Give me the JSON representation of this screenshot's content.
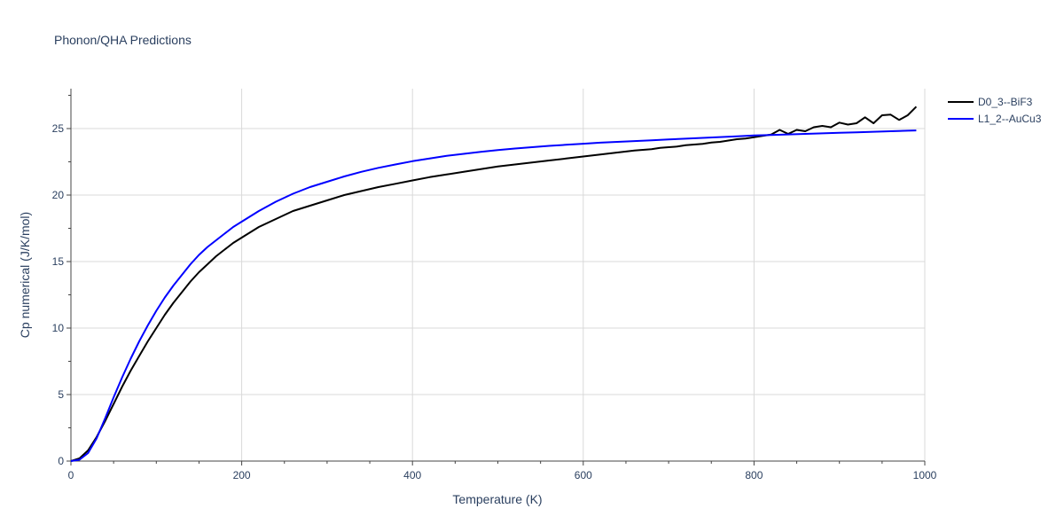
{
  "chart_data": {
    "type": "line",
    "title": "Phonon/QHA Predictions",
    "xlabel": "Temperature (K)",
    "ylabel": "Cp numerical (J/K/mol)",
    "xlim": [
      0,
      1000
    ],
    "ylim": [
      0,
      28
    ],
    "x_ticks": [
      0,
      200,
      400,
      600,
      800,
      1000
    ],
    "y_ticks": [
      0,
      5,
      10,
      15,
      20,
      25
    ],
    "grid": true,
    "legend_position": "top-right",
    "series": [
      {
        "name": "D0_3--BiF3",
        "color": "#000000",
        "x": [
          0,
          10,
          20,
          30,
          40,
          50,
          60,
          70,
          80,
          90,
          100,
          110,
          120,
          130,
          140,
          150,
          160,
          170,
          180,
          190,
          200,
          220,
          240,
          260,
          280,
          300,
          320,
          340,
          360,
          380,
          400,
          420,
          440,
          460,
          480,
          500,
          520,
          540,
          560,
          580,
          600,
          620,
          640,
          660,
          670,
          680,
          690,
          700,
          710,
          720,
          730,
          740,
          750,
          760,
          770,
          780,
          790,
          800,
          810,
          820,
          830,
          840,
          850,
          860,
          870,
          880,
          890,
          900,
          910,
          920,
          930,
          940,
          950,
          960,
          970,
          980,
          990
        ],
        "y": [
          0,
          0.2,
          0.8,
          1.8,
          3.0,
          4.3,
          5.6,
          6.8,
          7.9,
          9.0,
          10.0,
          11.0,
          11.9,
          12.7,
          13.5,
          14.2,
          14.8,
          15.4,
          15.9,
          16.4,
          16.8,
          17.6,
          18.2,
          18.8,
          19.2,
          19.6,
          20.0,
          20.3,
          20.6,
          20.85,
          21.1,
          21.35,
          21.55,
          21.75,
          21.95,
          22.15,
          22.3,
          22.45,
          22.6,
          22.75,
          22.9,
          23.05,
          23.2,
          23.35,
          23.4,
          23.45,
          23.55,
          23.6,
          23.65,
          23.75,
          23.8,
          23.85,
          23.95,
          24.0,
          24.1,
          24.2,
          24.25,
          24.35,
          24.45,
          24.55,
          24.9,
          24.6,
          24.9,
          24.8,
          25.1,
          25.2,
          25.1,
          25.45,
          25.3,
          25.4,
          25.85,
          25.4,
          26.0,
          26.05,
          25.65,
          26.0,
          26.65
        ]
      },
      {
        "name": "L1_2--AuCu3",
        "color": "#0000ff",
        "x": [
          0,
          10,
          20,
          30,
          40,
          50,
          60,
          70,
          80,
          90,
          100,
          110,
          120,
          130,
          140,
          150,
          160,
          170,
          180,
          190,
          200,
          220,
          240,
          260,
          280,
          300,
          320,
          340,
          360,
          380,
          400,
          420,
          440,
          460,
          480,
          500,
          520,
          540,
          560,
          580,
          600,
          620,
          640,
          660,
          680,
          700,
          720,
          740,
          760,
          780,
          800,
          820,
          840,
          860,
          880,
          900,
          920,
          940,
          960,
          980,
          990
        ],
        "y": [
          0,
          0.1,
          0.6,
          1.7,
          3.2,
          4.8,
          6.3,
          7.7,
          9.0,
          10.2,
          11.3,
          12.3,
          13.2,
          14.0,
          14.8,
          15.5,
          16.1,
          16.6,
          17.1,
          17.6,
          18.0,
          18.8,
          19.5,
          20.1,
          20.6,
          21.0,
          21.4,
          21.75,
          22.05,
          22.3,
          22.55,
          22.75,
          22.95,
          23.1,
          23.25,
          23.38,
          23.5,
          23.6,
          23.7,
          23.78,
          23.86,
          23.94,
          24.0,
          24.06,
          24.12,
          24.18,
          24.24,
          24.3,
          24.36,
          24.42,
          24.48,
          24.52,
          24.56,
          24.6,
          24.64,
          24.68,
          24.72,
          24.76,
          24.8,
          24.84,
          24.86
        ]
      }
    ]
  }
}
